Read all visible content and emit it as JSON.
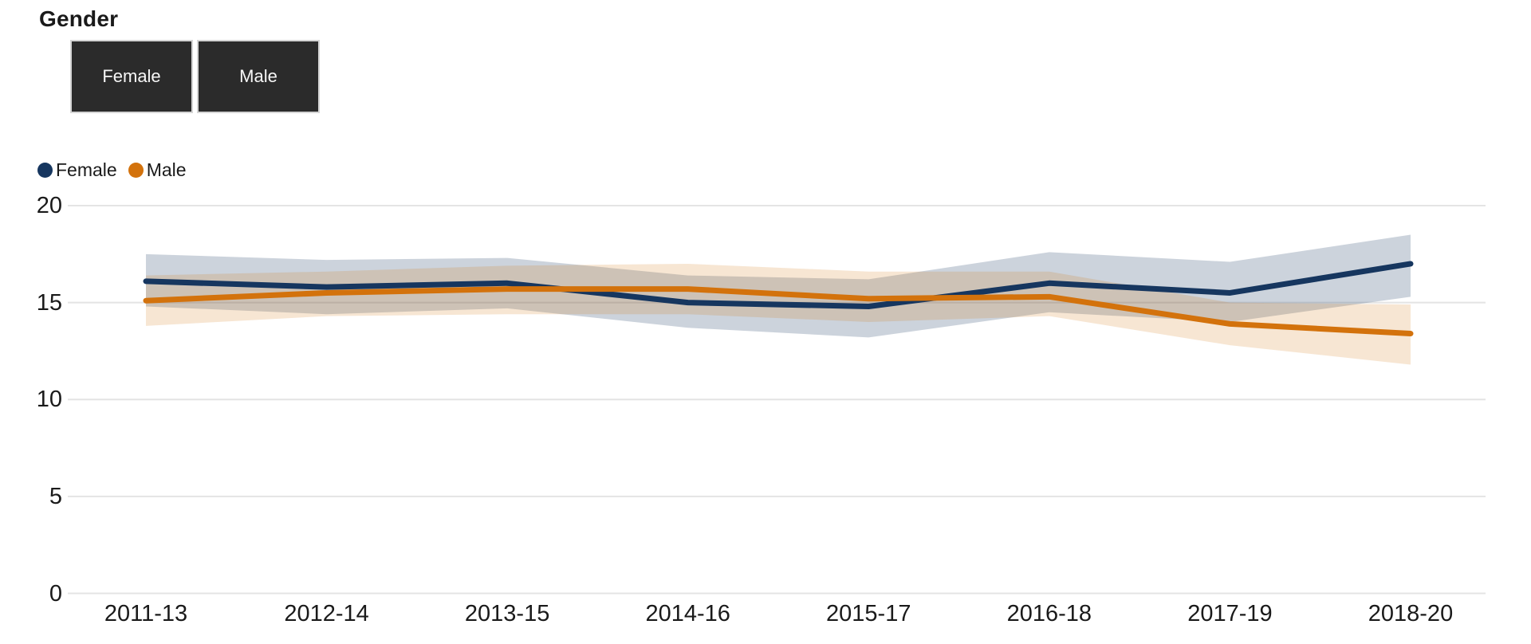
{
  "page": {
    "title": "Gender"
  },
  "controls": {
    "buttons": [
      {
        "label": "Female"
      },
      {
        "label": "Male"
      }
    ]
  },
  "chart_data": {
    "type": "line",
    "title": "Gender",
    "categories": [
      "2011-13",
      "2012-14",
      "2013-15",
      "2014-16",
      "2015-17",
      "2016-18",
      "2017-19",
      "2018-20"
    ],
    "series": [
      {
        "name": "Female",
        "color": "#16365f",
        "values": [
          16.1,
          15.8,
          16.0,
          15.0,
          14.8,
          16.0,
          15.5,
          17.0
        ],
        "band_low": [
          14.8,
          14.4,
          14.7,
          13.7,
          13.2,
          14.5,
          14.0,
          15.3
        ],
        "band_high": [
          17.5,
          17.2,
          17.3,
          16.4,
          16.2,
          17.6,
          17.1,
          18.5
        ],
        "band_opacity": 0.22
      },
      {
        "name": "Male",
        "color": "#d3720c",
        "values": [
          15.1,
          15.5,
          15.7,
          15.7,
          15.2,
          15.3,
          13.9,
          13.4
        ],
        "band_low": [
          13.8,
          14.3,
          14.4,
          14.4,
          14.0,
          14.3,
          12.8,
          11.8
        ],
        "band_high": [
          16.4,
          16.6,
          16.9,
          17.0,
          16.6,
          16.6,
          15.0,
          14.9
        ],
        "band_opacity": 0.18
      }
    ],
    "ylim": [
      0,
      20
    ],
    "yticks": [
      0,
      5,
      10,
      15,
      20
    ],
    "xlabel": "",
    "ylabel": "",
    "grid": true,
    "legend_position": "top-left",
    "band_style": "confidence-interval",
    "gridline_color": "#e4e4e4"
  }
}
